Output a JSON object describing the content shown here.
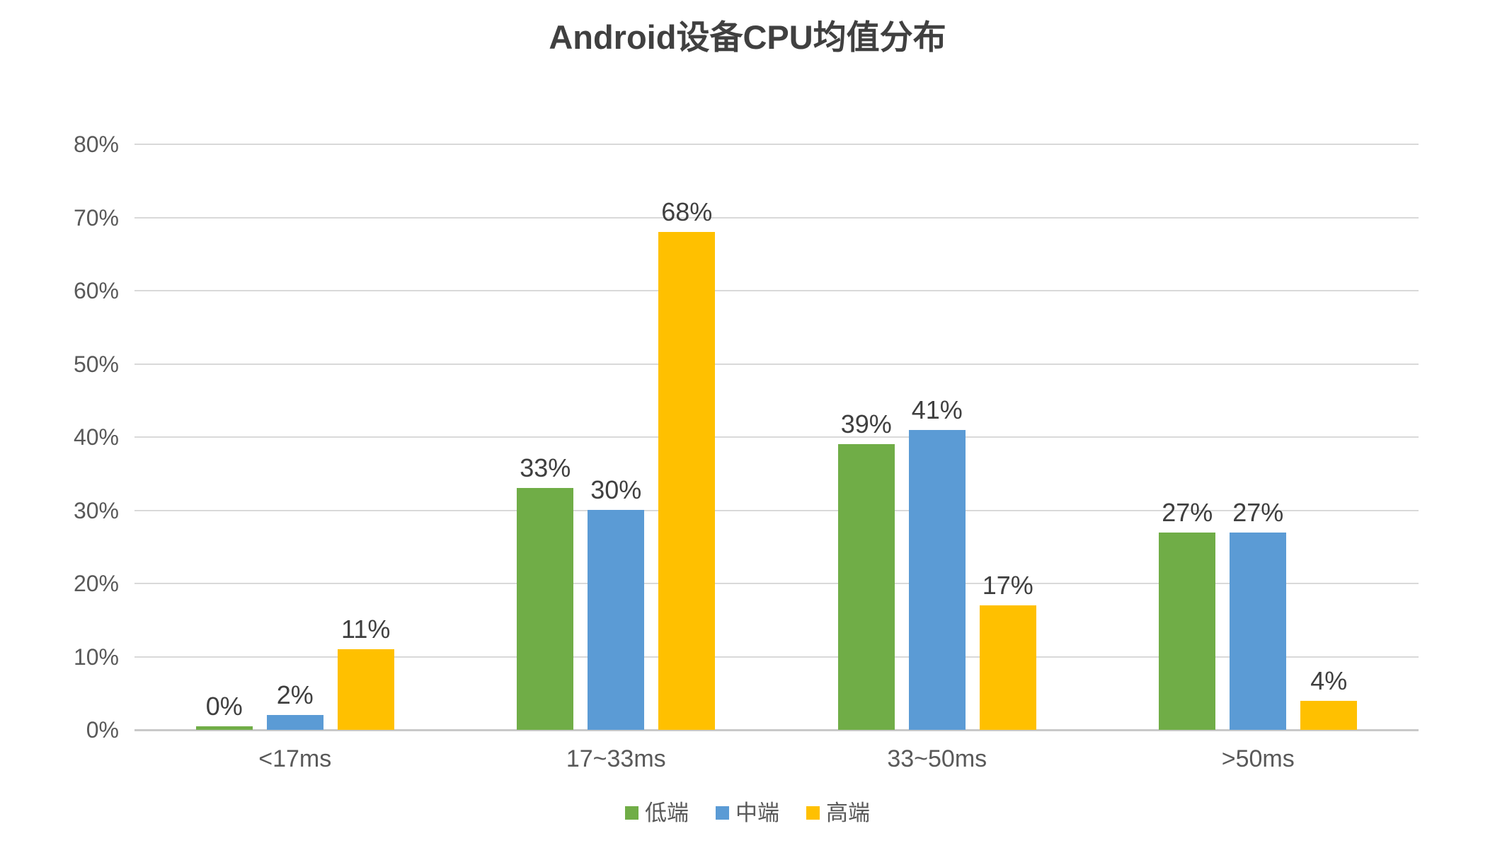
{
  "chart_data": {
    "type": "bar",
    "title": "Android设备CPU均值分布",
    "categories": [
      "<17ms",
      "17~33ms",
      "33~50ms",
      ">50ms"
    ],
    "series": [
      {
        "name": "低端",
        "color": "#70ad47",
        "values": [
          0,
          33,
          39,
          27
        ],
        "labels": [
          "0%",
          "33%",
          "39%",
          "27%"
        ]
      },
      {
        "name": "中端",
        "color": "#5b9bd5",
        "values": [
          2,
          30,
          41,
          27
        ],
        "labels": [
          "2%",
          "30%",
          "41%",
          "27%"
        ]
      },
      {
        "name": "高端",
        "color": "#ffc000",
        "values": [
          11,
          68,
          17,
          4
        ],
        "labels": [
          "11%",
          "68%",
          "17%",
          "4%"
        ]
      }
    ],
    "xlabel": "",
    "ylabel": "",
    "ylim": [
      0,
      80
    ],
    "y_ticks": [
      "0%",
      "10%",
      "20%",
      "30%",
      "40%",
      "50%",
      "60%",
      "70%",
      "80%"
    ],
    "grid": true,
    "data_labels": true,
    "legend_position": "bottom"
  },
  "colors": {
    "title_text": "#404040",
    "axis_text": "#595959",
    "value_label_text": "#3f3f3f",
    "gridline": "#d9d9d9",
    "axis_line": "#c9c9c9",
    "background": "#ffffff"
  }
}
